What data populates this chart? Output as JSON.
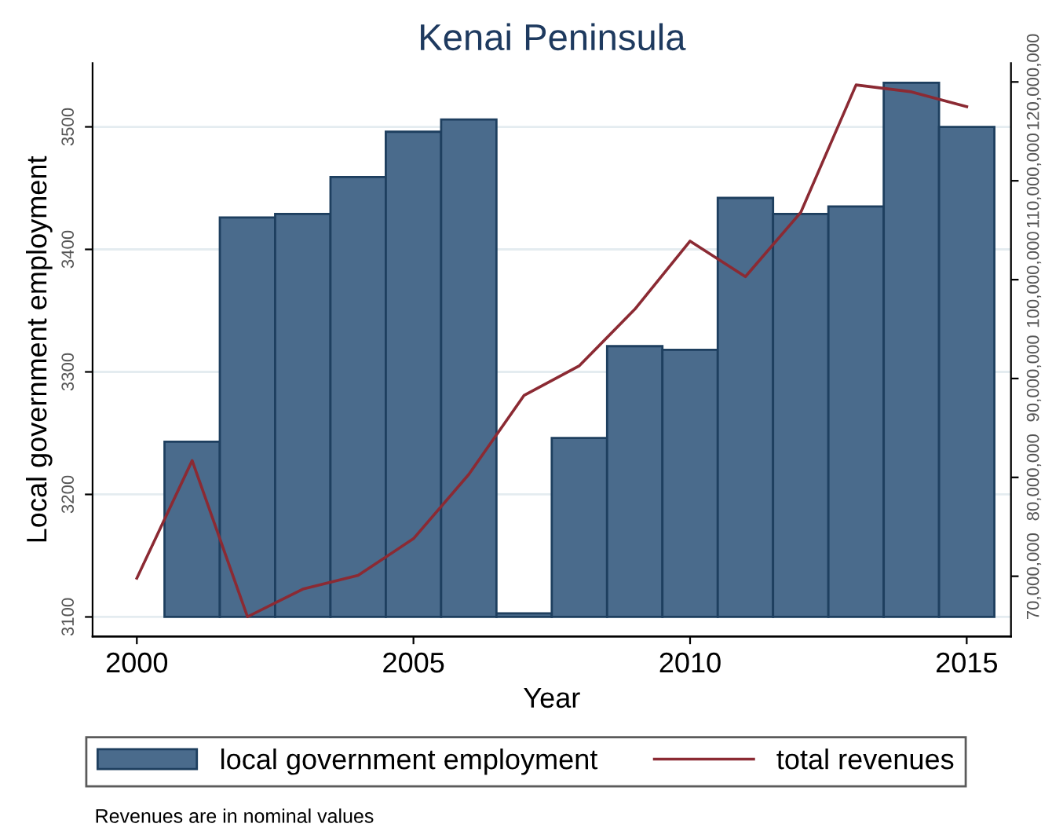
{
  "chart_data": {
    "type": "bar",
    "title": "Kenai Peninsula",
    "xlabel": "Year",
    "ylabel": "Local government employment",
    "x": [
      2000,
      2001,
      2002,
      2003,
      2004,
      2005,
      2006,
      2007,
      2008,
      2009,
      2010,
      2011,
      2012,
      2013,
      2014,
      2015
    ],
    "series": [
      {
        "name": "local government employment",
        "color": "#4a6b8c",
        "base": [
          null,
          3100,
          3100,
          3100,
          3100,
          3100,
          3100,
          3100,
          3100,
          3100,
          3100,
          3100,
          3100,
          3100,
          3100,
          3100
        ],
        "values": [
          null,
          143,
          326,
          329,
          359,
          396,
          406,
          3,
          146,
          221,
          218,
          342,
          329,
          335,
          436,
          400
        ]
      },
      {
        "name": "total revenues",
        "type": "line",
        "axis": "y2",
        "color": "#8b2a33",
        "values": [
          69800000,
          81700000,
          65900000,
          68700000,
          70100000,
          73800000,
          80300000,
          88300000,
          91300000,
          97000000,
          103900000,
          100300000,
          106800000,
          119700000,
          119000000,
          117500000
        ]
      }
    ],
    "xlim": [
      1999.2,
      2015.8
    ],
    "xticks": [
      2000,
      2005,
      2010,
      2015
    ],
    "ylim": [
      3084,
      3552
    ],
    "yticks": [
      3100,
      3200,
      3300,
      3400,
      3500
    ],
    "y2lim": [
      63900000,
      121900000
    ],
    "y2ticks": [
      {
        "value": 70000000,
        "label": "70,000,000"
      },
      {
        "value": 80000000,
        "label": "80,000,000"
      },
      {
        "value": 90000000,
        "label": "90,000,000"
      },
      {
        "value": 100000000,
        "label": "100,000,000"
      },
      {
        "value": 110000000,
        "label": "110,000,000"
      },
      {
        "value": 120000000,
        "label": "120,000,000"
      }
    ],
    "grid": "y",
    "legend": "bottom",
    "annotations": [
      "Revenues are in nominal values"
    ]
  }
}
